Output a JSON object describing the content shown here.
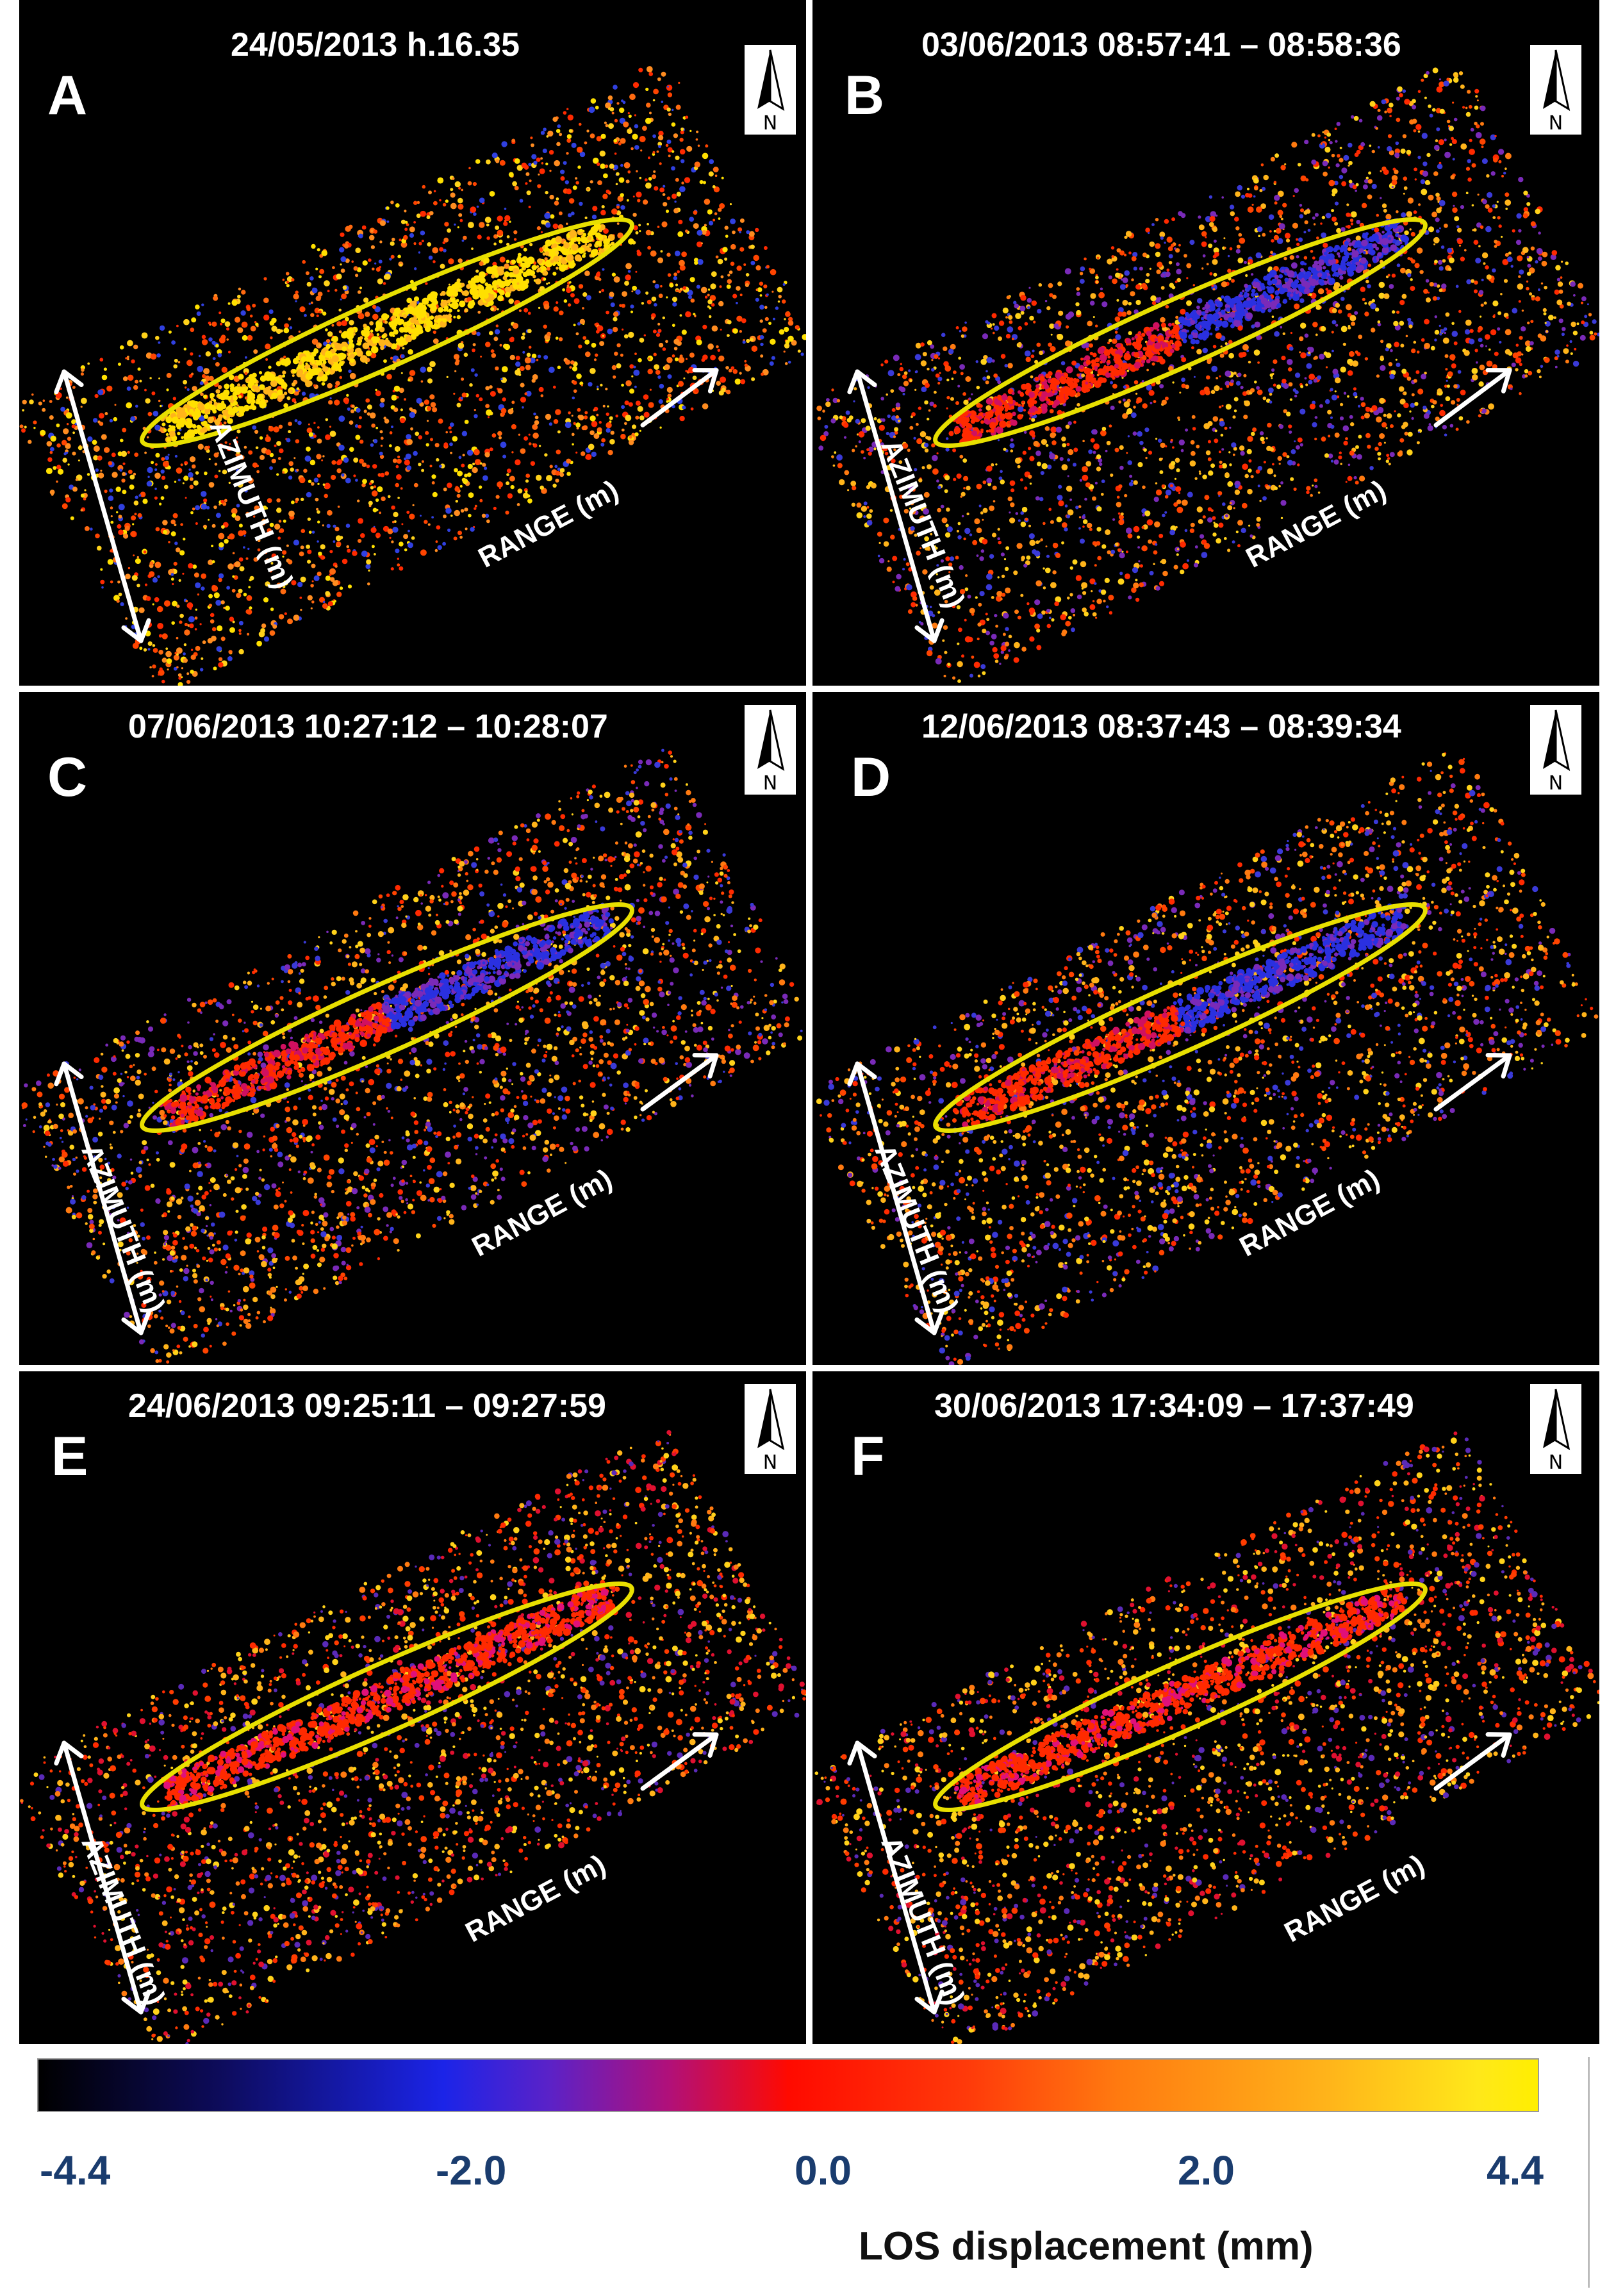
{
  "panels": [
    {
      "label": "A",
      "time": "24/05/2013 h.16.35",
      "azimuth": "AZIMUTH (m)",
      "range": "RANGE (m)",
      "north": "N",
      "dominant": "mixed-yellow-red"
    },
    {
      "label": "B",
      "time": "03/06/2013 08:57:41 – 08:58:36",
      "azimuth": "AZIMUTH (m)",
      "range": "RANGE (m)",
      "north": "N",
      "dominant": "blue-red"
    },
    {
      "label": "C",
      "time": "07/06/2013 10:27:12 – 10:28:07",
      "azimuth": "AZIMUTH (m)",
      "range": "RANGE (m)",
      "north": "N",
      "dominant": "blue-red"
    },
    {
      "label": "D",
      "time": "12/06/2013 08:37:43 – 08:39:34",
      "azimuth": "AZIMUTH (m)",
      "range": "RANGE (m)",
      "north": "N",
      "dominant": "blue-red"
    },
    {
      "label": "E",
      "time": "24/06/2013 09:25:11 – 09:27:59",
      "azimuth": "AZIMUTH (m)",
      "range": "RANGE (m)",
      "north": "N",
      "dominant": "red"
    },
    {
      "label": "F",
      "time": "30/06/2013 17:34:09 – 17:37:49",
      "azimuth": "AZIMUTH (m)",
      "range": "RANGE (m)",
      "north": "N",
      "dominant": "red"
    }
  ],
  "colorbar": {
    "ticks": [
      "-4.4",
      "-2.0",
      "0.0",
      "2.0",
      "4.4"
    ],
    "title": "LOS displacement (mm)",
    "colors": [
      "#000000",
      "#1b24e8",
      "#ff0a00",
      "#ffb41a",
      "#ffee00"
    ]
  },
  "colors": {
    "ellipse": "#e8e000",
    "background": "#000000"
  }
}
